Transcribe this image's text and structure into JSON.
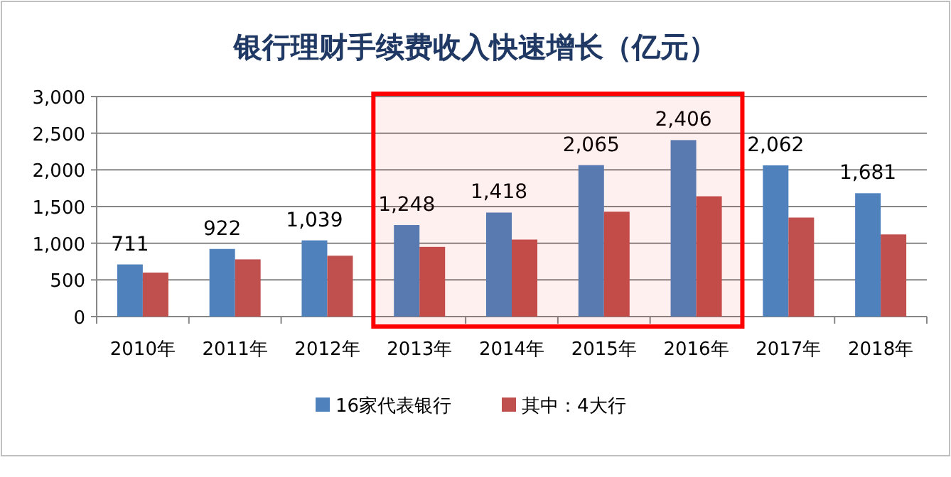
{
  "chart_data": {
    "type": "bar",
    "title": "银行理财手续费收入快速增长（亿元）",
    "categories": [
      "2010年",
      "2011年",
      "2012年",
      "2013年",
      "2014年",
      "2015年",
      "2016年",
      "2017年",
      "2018年"
    ],
    "series": [
      {
        "name": "16家代表银行",
        "color": "#4f81bd",
        "values": [
          711,
          922,
          1039,
          1248,
          1418,
          2065,
          2406,
          2062,
          1681
        ],
        "value_labels": [
          "711",
          "922",
          "1,039",
          "1,248",
          "1,418",
          "2,065",
          "2,406",
          "2,062",
          "1,681"
        ]
      },
      {
        "name": "其中：4大行",
        "color": "#c0504d",
        "values": [
          600,
          780,
          830,
          950,
          1050,
          1430,
          1640,
          1350,
          1120
        ]
      }
    ],
    "ylim": [
      0,
      3000
    ],
    "yticks": [
      0,
      500,
      {
        "value": 1000,
        "label": "1,000"
      },
      {
        "value": 1500,
        "label": "1,500"
      },
      {
        "value": 2000,
        "label": "2,000"
      },
      {
        "value": 2500,
        "label": "2,500"
      },
      {
        "value": 3000,
        "label": "3,000"
      }
    ],
    "grid": "y",
    "legend": "bottom",
    "bands": [
      {
        "axis": "x",
        "from": "2013年",
        "to": "2016年",
        "color": "#ff0000"
      }
    ]
  }
}
